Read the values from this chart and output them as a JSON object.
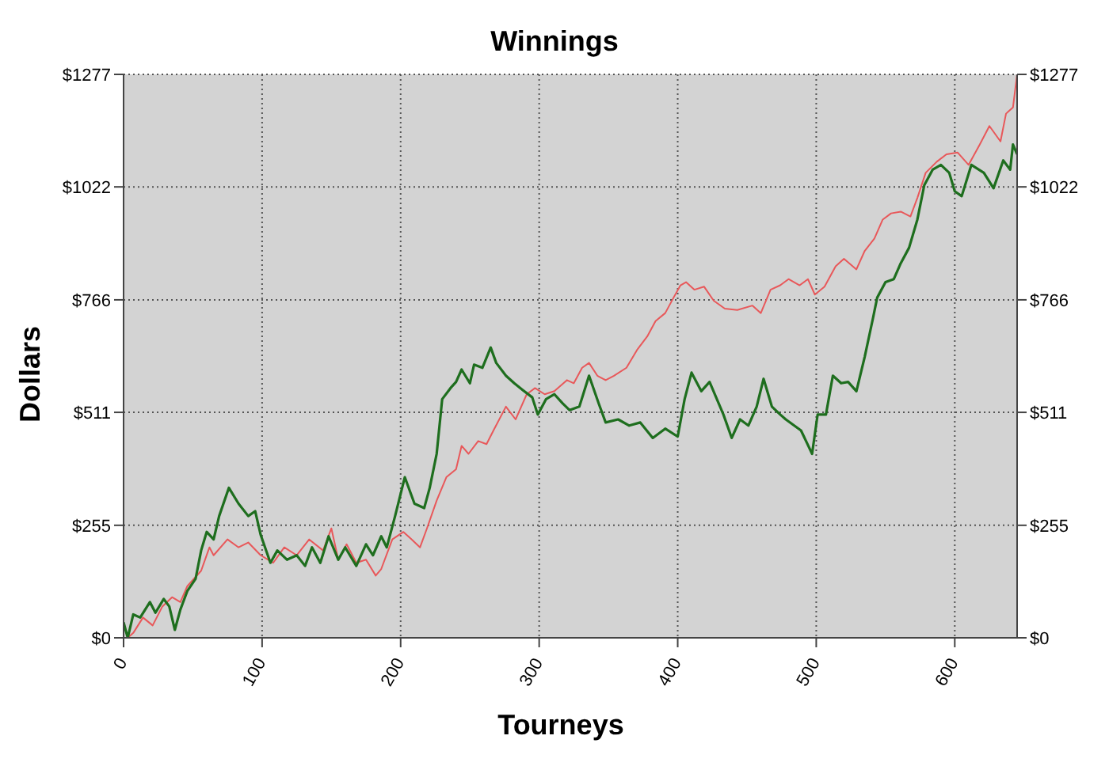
{
  "chart_data": {
    "type": "line",
    "title": "Winnings",
    "xlabel": "Tourneys",
    "ylabel": "Dollars",
    "xlim": [
      0,
      645
    ],
    "xticks": [
      0,
      100,
      200,
      300,
      400,
      500,
      600
    ],
    "ylim": [
      0,
      1277
    ],
    "yticks": [
      {
        "value": 0,
        "label": "$0"
      },
      {
        "value": 255,
        "label": "$255"
      },
      {
        "value": 511,
        "label": "$511"
      },
      {
        "value": 766,
        "label": "$766"
      },
      {
        "value": 1022,
        "label": "$1022"
      },
      {
        "value": 1277,
        "label": "$1277"
      }
    ],
    "y2lim": [
      0,
      1277
    ],
    "y2ticks": [
      {
        "value": 0,
        "label": "$0"
      },
      {
        "value": 255,
        "label": "$255"
      },
      {
        "value": 511,
        "label": "$511"
      },
      {
        "value": 766,
        "label": "$766"
      },
      {
        "value": 1022,
        "label": "$1022"
      },
      {
        "value": 1277,
        "label": "$1277"
      }
    ],
    "grid": true,
    "marker": "none",
    "line_style": "solid",
    "series": [
      {
        "color": "#e8585a",
        "x": [
          3,
          7,
          14,
          21,
          28,
          35,
          41,
          46,
          56,
          62,
          65,
          75,
          83,
          90,
          99,
          108,
          116,
          125,
          134,
          144,
          150,
          155,
          161,
          168,
          175,
          182,
          186,
          194,
          202,
          208,
          214,
          219,
          226,
          233,
          240,
          244,
          249,
          256,
          262,
          267,
          276,
          283,
          291,
          297,
          304,
          311,
          320,
          325,
          331,
          336,
          342,
          348,
          354,
          363,
          371,
          378,
          384,
          391,
          397,
          402,
          406,
          412,
          419,
          426,
          434,
          443,
          454,
          460,
          467,
          474,
          480,
          488,
          494,
          499,
          506,
          514,
          520,
          529,
          535,
          542,
          548,
          554,
          561,
          568,
          573,
          579,
          587,
          594,
          602,
          610,
          618,
          625,
          633,
          637,
          642,
          645
        ],
        "values": [
          0,
          11,
          46,
          28,
          71,
          92,
          81,
          117,
          152,
          205,
          187,
          223,
          205,
          216,
          187,
          170,
          205,
          187,
          223,
          198,
          248,
          177,
          212,
          170,
          177,
          141,
          156,
          223,
          240,
          223,
          205,
          248,
          311,
          364,
          382,
          435,
          417,
          446,
          439,
          470,
          524,
          495,
          552,
          566,
          552,
          559,
          584,
          577,
          612,
          623,
          594,
          584,
          594,
          612,
          654,
          683,
          718,
          736,
          771,
          799,
          806,
          789,
          796,
          764,
          746,
          743,
          753,
          736,
          789,
          799,
          813,
          799,
          813,
          778,
          796,
          842,
          859,
          835,
          877,
          905,
          948,
          962,
          966,
          955,
          997,
          1054,
          1079,
          1096,
          1100,
          1072,
          1118,
          1160,
          1125,
          1188,
          1202,
          1277
        ]
      },
      {
        "color": "#1e6e1e",
        "x": [
          0,
          3,
          7,
          12,
          19,
          23,
          29,
          33,
          37,
          41,
          46,
          52,
          56,
          60,
          65,
          69,
          76,
          83,
          90,
          95,
          99,
          106,
          111,
          118,
          125,
          131,
          136,
          142,
          148,
          155,
          160,
          168,
          175,
          180,
          186,
          190,
          196,
          203,
          210,
          217,
          221,
          226,
          230,
          236,
          240,
          244,
          250,
          253,
          259,
          265,
          269,
          276,
          282,
          288,
          295,
          299,
          305,
          311,
          317,
          322,
          329,
          336,
          343,
          348,
          357,
          365,
          373,
          382,
          391,
          400,
          405,
          410,
          417,
          423,
          433,
          439,
          445,
          451,
          457,
          462,
          468,
          474,
          478,
          489,
          497,
          501,
          507,
          512,
          518,
          523,
          529,
          535,
          541,
          544,
          550,
          556,
          561,
          567,
          573,
          578,
          584,
          590,
          596,
          600,
          605,
          612,
          621,
          628,
          635,
          640,
          642,
          645
        ],
        "values": [
          35,
          0,
          53,
          46,
          81,
          57,
          88,
          71,
          18,
          64,
          106,
          134,
          198,
          240,
          223,
          276,
          340,
          304,
          276,
          287,
          233,
          170,
          198,
          177,
          187,
          163,
          205,
          170,
          230,
          177,
          205,
          163,
          212,
          187,
          230,
          205,
          276,
          364,
          304,
          294,
          340,
          417,
          541,
          566,
          580,
          608,
          577,
          619,
          612,
          658,
          623,
          594,
          577,
          562,
          545,
          506,
          541,
          552,
          531,
          516,
          524,
          594,
          531,
          488,
          495,
          481,
          488,
          453,
          474,
          456,
          541,
          601,
          559,
          580,
          506,
          453,
          495,
          481,
          524,
          587,
          524,
          506,
          495,
          470,
          417,
          506,
          506,
          594,
          577,
          580,
          559,
          637,
          725,
          771,
          806,
          813,
          849,
          884,
          948,
          1026,
          1061,
          1072,
          1054,
          1012,
          1001,
          1072,
          1054,
          1019,
          1082,
          1061,
          1118,
          1096
        ]
      }
    ]
  }
}
